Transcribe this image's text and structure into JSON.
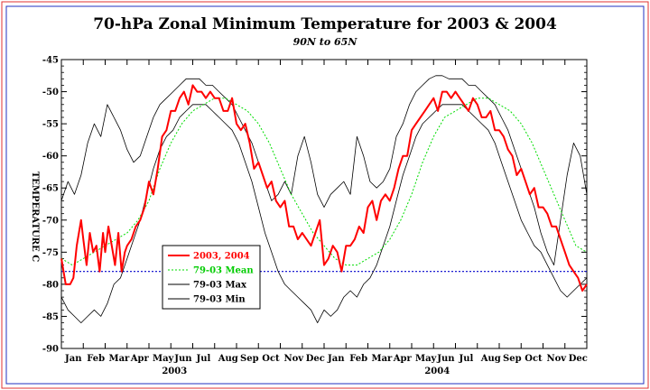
{
  "chart_data": {
    "type": "line",
    "title": "70-hPa Zonal Minimum Temperature for 2003 & 2004",
    "subtitle": "90N to 65N",
    "ylabel": "TEMPERATURE C",
    "ylim": [
      -90,
      -45
    ],
    "yticks": [
      -90,
      -85,
      -80,
      -75,
      -70,
      -65,
      -60,
      -55,
      -50,
      -45
    ],
    "ytick_labels": [
      "-90",
      "-85",
      "-80",
      "-75",
      "-70",
      "-65",
      "-60",
      "-55",
      "-50",
      "-45"
    ],
    "xlim": [
      0,
      24
    ],
    "x_unit": "months since start of 2003",
    "month_labels": [
      "Jan",
      "Feb",
      "Mar",
      "Apr",
      "May",
      "Jun",
      "Jul",
      "Aug",
      "Sep",
      "Oct",
      "Nov",
      "Dec",
      "Jan",
      "Feb",
      "Mar",
      "Apr",
      "May",
      "Jun",
      "Jul",
      "Aug",
      "Sep",
      "Oct",
      "Nov",
      "Dec"
    ],
    "year_labels": [
      {
        "year": "2003",
        "x": 5
      },
      {
        "year": "2004",
        "x": 17
      }
    ],
    "reference_line": {
      "y": -78,
      "color": "#0000cc",
      "style": "dotted"
    },
    "legend": {
      "position": "lower-left"
    },
    "series": [
      {
        "name": "2003, 2004",
        "color": "#ff0000",
        "width": 2,
        "dash": "",
        "x": [
          0,
          0.2,
          0.4,
          0.55,
          0.7,
          0.9,
          1.0,
          1.15,
          1.3,
          1.45,
          1.6,
          1.75,
          1.9,
          2.0,
          2.15,
          2.3,
          2.45,
          2.6,
          2.75,
          2.9,
          3.0,
          3.2,
          3.4,
          3.6,
          3.8,
          4.0,
          4.2,
          4.4,
          4.6,
          4.8,
          5.0,
          5.2,
          5.4,
          5.6,
          5.8,
          6.0,
          6.2,
          6.4,
          6.6,
          6.8,
          7.0,
          7.2,
          7.4,
          7.6,
          7.8,
          8.0,
          8.2,
          8.4,
          8.6,
          8.8,
          9.0,
          9.2,
          9.4,
          9.6,
          9.8,
          10.0,
          10.2,
          10.4,
          10.6,
          10.8,
          11.0,
          11.2,
          11.4,
          11.6,
          11.8,
          12.0,
          12.2,
          12.4,
          12.6,
          12.8,
          13.0,
          13.2,
          13.4,
          13.6,
          13.8,
          14.0,
          14.2,
          14.4,
          14.6,
          14.8,
          15.0,
          15.2,
          15.4,
          15.6,
          15.8,
          16.0,
          16.2,
          16.4,
          16.6,
          16.8,
          17.0,
          17.2,
          17.4,
          17.6,
          17.8,
          18.0,
          18.2,
          18.4,
          18.6,
          18.8,
          19.0,
          19.2,
          19.4,
          19.6,
          19.8,
          20.0,
          20.2,
          20.4,
          20.6,
          20.8,
          21.0,
          21.2,
          21.4,
          21.6,
          21.8,
          22.0,
          22.2,
          22.4,
          22.6,
          22.8,
          23.0,
          23.2,
          23.4,
          23.6,
          23.8,
          24.0
        ],
        "y": [
          -76,
          -80,
          -80,
          -79,
          -74,
          -70,
          -73,
          -77,
          -72,
          -75,
          -74,
          -78,
          -72,
          -75,
          -71,
          -74,
          -77,
          -72,
          -78,
          -75,
          -74,
          -73,
          -71,
          -70,
          -68,
          -64,
          -66,
          -62,
          -57,
          -56,
          -53,
          -53,
          -51,
          -50,
          -52,
          -49,
          -50,
          -50,
          -51,
          -50,
          -51,
          -51,
          -53,
          -53,
          -51,
          -55,
          -56,
          -55,
          -58,
          -62,
          -61,
          -63,
          -65,
          -64,
          -67,
          -68,
          -67,
          -71,
          -71,
          -73,
          -72,
          -73,
          -74,
          -72,
          -70,
          -77,
          -76,
          -74,
          -75,
          -78,
          -74,
          -74,
          -73,
          -71,
          -72,
          -68,
          -67,
          -70,
          -67,
          -66,
          -67,
          -65,
          -62,
          -60,
          -60,
          -56,
          -55,
          -54,
          -53,
          -52,
          -51,
          -53,
          -50,
          -50,
          -51,
          -50,
          -51,
          -52,
          -53,
          -51,
          -52,
          -54,
          -54,
          -53,
          -56,
          -56,
          -57,
          -59,
          -60,
          -63,
          -62,
          -64,
          -66,
          -65,
          -68,
          -68,
          -69,
          -71,
          -71,
          -73,
          -75,
          -77,
          -78,
          -79,
          -81,
          -80
        ]
      },
      {
        "name": "79-03 Mean",
        "color": "#00dd00",
        "width": 1,
        "dash": "2,2",
        "x": [
          0,
          0.5,
          1,
          1.5,
          2,
          2.5,
          3,
          3.5,
          4,
          4.5,
          5,
          5.5,
          6,
          6.5,
          7,
          7.5,
          8,
          8.5,
          9,
          9.5,
          10,
          10.5,
          11,
          11.5,
          12,
          12.5,
          13,
          13.5,
          14,
          14.5,
          15,
          15.5,
          16,
          16.5,
          17,
          17.5,
          18,
          18.5,
          19,
          19.5,
          20,
          20.5,
          21,
          21.5,
          22,
          22.5,
          23,
          23.5,
          24
        ],
        "y": [
          -76,
          -77,
          -76,
          -75,
          -74,
          -73,
          -72,
          -70,
          -67,
          -62,
          -58,
          -55,
          -53,
          -52,
          -51,
          -51,
          -52,
          -53,
          -55,
          -58,
          -62,
          -66,
          -69,
          -72,
          -74,
          -76,
          -77,
          -77,
          -76,
          -75,
          -73,
          -70,
          -66,
          -61,
          -57,
          -54,
          -53,
          -52,
          -51,
          -51,
          -52,
          -53,
          -55,
          -58,
          -62,
          -66,
          -70,
          -74,
          -75
        ]
      },
      {
        "name": "79-03 Max",
        "color": "#000000",
        "width": 0.8,
        "dash": "",
        "x": [
          0,
          0.3,
          0.6,
          0.9,
          1.2,
          1.5,
          1.8,
          2.1,
          2.4,
          2.7,
          3.0,
          3.3,
          3.6,
          3.9,
          4.2,
          4.5,
          4.8,
          5.1,
          5.4,
          5.7,
          6.0,
          6.3,
          6.6,
          6.9,
          7.2,
          7.5,
          7.8,
          8.1,
          8.4,
          8.7,
          9.0,
          9.3,
          9.6,
          9.9,
          10.2,
          10.5,
          10.8,
          11.1,
          11.4,
          11.7,
          12.0,
          12.3,
          12.6,
          12.9,
          13.2,
          13.5,
          13.8,
          14.1,
          14.4,
          14.7,
          15.0,
          15.3,
          15.6,
          15.9,
          16.2,
          16.5,
          16.8,
          17.1,
          17.4,
          17.7,
          18.0,
          18.3,
          18.6,
          18.9,
          19.2,
          19.5,
          19.8,
          20.1,
          20.4,
          20.7,
          21.0,
          21.3,
          21.6,
          21.9,
          22.2,
          22.5,
          22.8,
          23.1,
          23.4,
          23.7,
          24.0
        ],
        "y": [
          -67,
          -64,
          -66,
          -63,
          -58,
          -55,
          -57,
          -52,
          -54,
          -56,
          -59,
          -61,
          -60,
          -57,
          -54,
          -52,
          -51,
          -50,
          -49,
          -48,
          -48,
          -48,
          -49,
          -49,
          -50,
          -51,
          -52,
          -54,
          -56,
          -58,
          -61,
          -64,
          -67,
          -66,
          -64,
          -66,
          -60,
          -57,
          -61,
          -66,
          -68,
          -66,
          -65,
          -64,
          -66,
          -57,
          -60,
          -64,
          -65,
          -64,
          -62,
          -57,
          -55,
          -52,
          -50,
          -49,
          -48,
          -47.5,
          -47.5,
          -48,
          -48,
          -48,
          -49,
          -49,
          -50,
          -51,
          -52,
          -54,
          -56,
          -59,
          -62,
          -65,
          -68,
          -72,
          -75,
          -77,
          -70,
          -63,
          -58,
          -60,
          -66
        ]
      },
      {
        "name": "79-03 Min",
        "color": "#000000",
        "width": 0.8,
        "dash": "",
        "x": [
          0,
          0.3,
          0.6,
          0.9,
          1.2,
          1.5,
          1.8,
          2.1,
          2.4,
          2.7,
          3.0,
          3.3,
          3.6,
          3.9,
          4.2,
          4.5,
          4.8,
          5.1,
          5.4,
          5.7,
          6.0,
          6.3,
          6.6,
          6.9,
          7.2,
          7.5,
          7.8,
          8.1,
          8.4,
          8.7,
          9.0,
          9.3,
          9.6,
          9.9,
          10.2,
          10.5,
          10.8,
          11.1,
          11.4,
          11.7,
          12.0,
          12.3,
          12.6,
          12.9,
          13.2,
          13.5,
          13.8,
          14.1,
          14.4,
          14.7,
          15.0,
          15.3,
          15.6,
          15.9,
          16.2,
          16.5,
          16.8,
          17.1,
          17.4,
          17.7,
          18.0,
          18.3,
          18.6,
          18.9,
          19.2,
          19.5,
          19.8,
          20.1,
          20.4,
          20.7,
          21.0,
          21.3,
          21.6,
          21.9,
          22.2,
          22.5,
          22.8,
          23.1,
          23.4,
          23.7,
          24.0
        ],
        "y": [
          -82,
          -84,
          -85,
          -86,
          -85,
          -84,
          -85,
          -83,
          -80,
          -79,
          -76,
          -73,
          -70,
          -66,
          -62,
          -59,
          -57,
          -56,
          -54,
          -53,
          -52,
          -52,
          -52,
          -53,
          -54,
          -55,
          -56,
          -58,
          -61,
          -64,
          -68,
          -72,
          -75,
          -78,
          -80,
          -81,
          -82,
          -83,
          -84,
          -86,
          -84,
          -85,
          -84,
          -82,
          -81,
          -82,
          -80,
          -79,
          -77,
          -74,
          -71,
          -67,
          -63,
          -60,
          -57,
          -55,
          -54,
          -53,
          -52,
          -52,
          -52,
          -52,
          -53,
          -54,
          -55,
          -56,
          -58,
          -61,
          -64,
          -67,
          -70,
          -72,
          -74,
          -75,
          -77,
          -79,
          -81,
          -82,
          -81,
          -80,
          -79
        ]
      }
    ]
  }
}
